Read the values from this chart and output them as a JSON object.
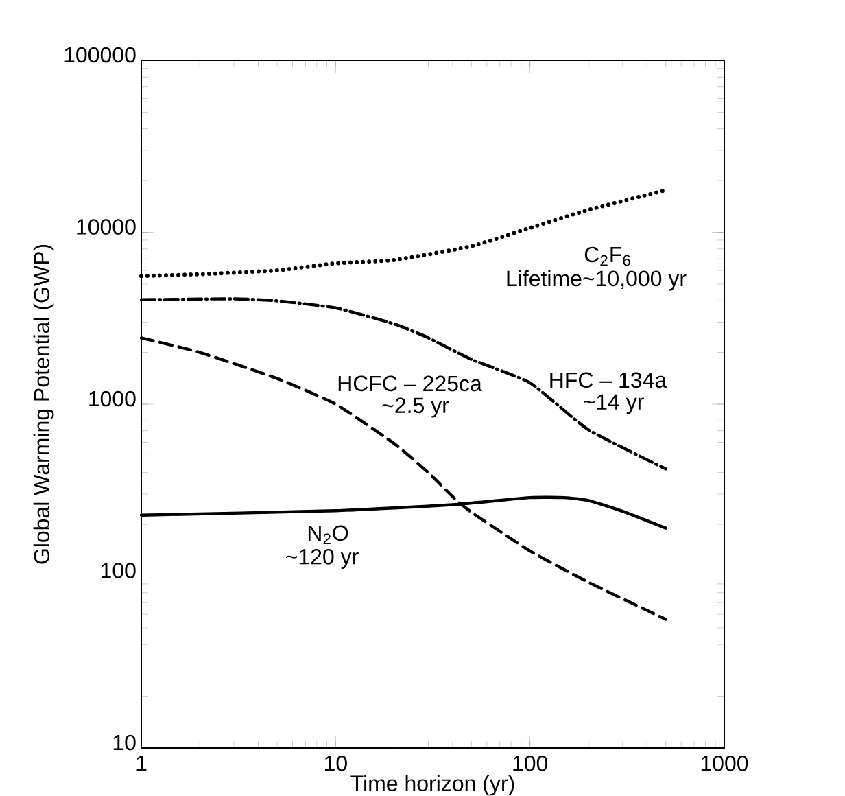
{
  "chart_data": {
    "type": "line",
    "xlabel": "Time horizon (yr)",
    "ylabel": "Global Warming Potential (GWP)",
    "log": "xy",
    "grid": false,
    "xlim": [
      1,
      1000
    ],
    "ylim": [
      10,
      100000
    ],
    "xticks": [
      1,
      10,
      100,
      1000
    ],
    "yticks": [
      10,
      100,
      1000,
      10000,
      100000
    ],
    "series": [
      {
        "color": "#000000",
        "line_style": "dotted",
        "x": [
          1,
          2,
          5,
          10,
          20,
          50,
          100,
          200,
          500
        ],
        "values": [
          5570,
          5700,
          6000,
          6600,
          6900,
          8300,
          10600,
          13500,
          17600
        ]
      },
      {
        "color": "#000000",
        "line_style": "dashdot",
        "x": [
          1,
          3,
          5,
          10,
          20,
          30,
          50,
          100,
          200,
          500
        ],
        "values": [
          4050,
          4100,
          3990,
          3630,
          2930,
          2430,
          1820,
          1330,
          710,
          420
        ]
      },
      {
        "color": "#000000",
        "line_style": "dashed",
        "x": [
          1,
          2,
          5,
          10,
          20,
          30,
          40,
          50,
          100,
          200,
          500
        ],
        "values": [
          2430,
          2000,
          1410,
          1000,
          590,
          400,
          290,
          235,
          140,
          92,
          56
        ]
      },
      {
        "color": "#000000",
        "line_style": "solid",
        "x": [
          1,
          10,
          40,
          100,
          150,
          200,
          300,
          500
        ],
        "values": [
          226,
          240,
          260,
          286,
          286,
          275,
          238,
          190
        ]
      }
    ],
    "annotations": [
      "C$_{2}$F$_{6}$",
      "Lifetime~10,000 yr",
      "HFC – 134a",
      "~14 yr",
      "HCFC – 225ca",
      "~2.5 yr",
      "N$_{2}$O",
      "~120 yr"
    ]
  }
}
